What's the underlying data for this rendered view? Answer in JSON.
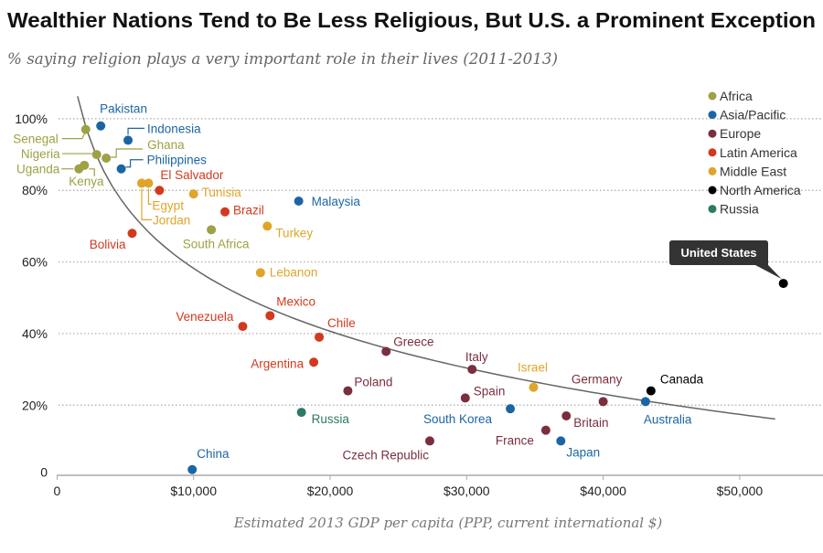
{
  "title": "Wealthier Nations Tend to Be Less Religious, But U.S. a Prominent Exception",
  "subtitle": "% saying religion plays a very important role in their lives (2011-2013)",
  "chart_data": {
    "type": "scatter",
    "title": "Wealthier Nations Tend to Be Less Religious, But U.S. a Prominent Exception",
    "subtitle": "% saying religion plays a very important role in their lives (2011-2013)",
    "xlabel": "Estimated 2013 GDP per capita (PPP, current international $)",
    "ylabel": "",
    "xlim": [
      0,
      57000
    ],
    "ylim": [
      0,
      100
    ],
    "x_ticks": [
      {
        "v": 0,
        "label": "0"
      },
      {
        "v": 10000,
        "label": "$10,000"
      },
      {
        "v": 20000,
        "label": "$20,000"
      },
      {
        "v": 30000,
        "label": "$30,000"
      },
      {
        "v": 40000,
        "label": "$40,000"
      },
      {
        "v": 50000,
        "label": "$50,000"
      }
    ],
    "y_ticks": [
      {
        "v": 0,
        "label": "0"
      },
      {
        "v": 20,
        "label": "20%"
      },
      {
        "v": 40,
        "label": "40%"
      },
      {
        "v": 60,
        "label": "60%"
      },
      {
        "v": 80,
        "label": "80%"
      },
      {
        "v": 100,
        "label": "100%"
      }
    ],
    "grid": "horizontal dotted",
    "legend_position": "top-right",
    "regions": [
      {
        "name": "Africa",
        "color": "#9ea144"
      },
      {
        "name": "Asia/Pacific",
        "color": "#1c65a5"
      },
      {
        "name": "Europe",
        "color": "#7a2e3e"
      },
      {
        "name": "Latin America",
        "color": "#d2391f"
      },
      {
        "name": "Middle East",
        "color": "#dfa52a"
      },
      {
        "name": "North America",
        "color": "#000000"
      },
      {
        "name": "Russia",
        "color": "#2d7a66"
      }
    ],
    "trendline": {
      "type": "logarithmic",
      "x_range": [
        1500,
        52600
      ],
      "y_equals": "291.6 - 25.34*ln(x)",
      "color": "#666666"
    },
    "points": [
      {
        "country": "Pakistan",
        "region": "Asia/Pacific",
        "x": 3200,
        "y": 98
      },
      {
        "country": "Indonesia",
        "region": "Asia/Pacific",
        "x": 5200,
        "y": 94
      },
      {
        "country": "Senegal",
        "region": "Africa",
        "x": 2100,
        "y": 97
      },
      {
        "country": "Nigeria",
        "region": "Africa",
        "x": 2900,
        "y": 90
      },
      {
        "country": "Ghana",
        "region": "Africa",
        "x": 3600,
        "y": 89
      },
      {
        "country": "Uganda",
        "region": "Africa",
        "x": 1600,
        "y": 86
      },
      {
        "country": "Kenya",
        "region": "Africa",
        "x": 2000,
        "y": 87
      },
      {
        "country": "Philippines",
        "region": "Asia/Pacific",
        "x": 4700,
        "y": 86
      },
      {
        "country": "Egypt",
        "region": "Middle East",
        "x": 6700,
        "y": 82
      },
      {
        "country": "Jordan",
        "region": "Middle East",
        "x": 6200,
        "y": 82
      },
      {
        "country": "El Salvador",
        "region": "Latin America",
        "x": 7500,
        "y": 80
      },
      {
        "country": "Tunisia",
        "region": "Middle East",
        "x": 10000,
        "y": 79
      },
      {
        "country": "Brazil",
        "region": "Latin America",
        "x": 12300,
        "y": 74
      },
      {
        "country": "South Africa",
        "region": "Africa",
        "x": 11300,
        "y": 69
      },
      {
        "country": "Bolivia",
        "region": "Latin America",
        "x": 5500,
        "y": 68
      },
      {
        "country": "Turkey",
        "region": "Middle East",
        "x": 15400,
        "y": 70
      },
      {
        "country": "Malaysia",
        "region": "Asia/Pacific",
        "x": 17700,
        "y": 77
      },
      {
        "country": "Lebanon",
        "region": "Middle East",
        "x": 14900,
        "y": 57
      },
      {
        "country": "Mexico",
        "region": "Latin America",
        "x": 15600,
        "y": 45
      },
      {
        "country": "Venezuela",
        "region": "Latin America",
        "x": 13600,
        "y": 42
      },
      {
        "country": "Chile",
        "region": "Latin America",
        "x": 19200,
        "y": 39
      },
      {
        "country": "Argentina",
        "region": "Latin America",
        "x": 18800,
        "y": 32
      },
      {
        "country": "Greece",
        "region": "Europe",
        "x": 24100,
        "y": 35
      },
      {
        "country": "Poland",
        "region": "Europe",
        "x": 21300,
        "y": 24
      },
      {
        "country": "Russia",
        "region": "Russia",
        "x": 17900,
        "y": 18
      },
      {
        "country": "China",
        "region": "Asia/Pacific",
        "x": 9900,
        "y": 2
      },
      {
        "country": "Czech Republic",
        "region": "Europe",
        "x": 27300,
        "y": 10
      },
      {
        "country": "Italy",
        "region": "Europe",
        "x": 30400,
        "y": 30
      },
      {
        "country": "Spain",
        "region": "Europe",
        "x": 29900,
        "y": 22
      },
      {
        "country": "South Korea",
        "region": "Asia/Pacific",
        "x": 33200,
        "y": 19
      },
      {
        "country": "Israel",
        "region": "Middle East",
        "x": 34900,
        "y": 25
      },
      {
        "country": "France",
        "region": "Europe",
        "x": 35800,
        "y": 13
      },
      {
        "country": "Japan",
        "region": "Asia/Pacific",
        "x": 36900,
        "y": 10
      },
      {
        "country": "Britain",
        "region": "Europe",
        "x": 37300,
        "y": 17
      },
      {
        "country": "Germany",
        "region": "Europe",
        "x": 40000,
        "y": 21
      },
      {
        "country": "Australia",
        "region": "Asia/Pacific",
        "x": 43100,
        "y": 21
      },
      {
        "country": "Canada",
        "region": "North America",
        "x": 43500,
        "y": 24
      },
      {
        "country": "United States",
        "region": "North America",
        "x": 53200,
        "y": 54,
        "callout": true
      }
    ]
  }
}
